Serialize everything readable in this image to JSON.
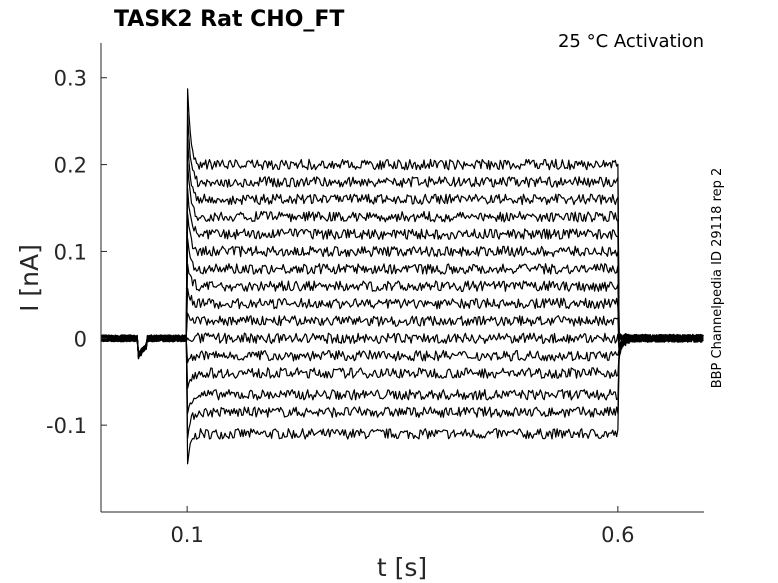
{
  "chart_data": {
    "type": "line",
    "title": "TASK2  Rat  CHO_FT",
    "annotation": "25 °C  Activation",
    "side_label": "BBP Channelpedia ID 29118 rep 2",
    "xlabel": "t [s]",
    "ylabel": "I [nA]",
    "xlim": [
      0.0,
      0.7
    ],
    "ylim": [
      -0.2,
      0.34
    ],
    "xticks": [
      0.1,
      0.6
    ],
    "xtick_labels": [
      "0.1",
      "0.6"
    ],
    "yticks": [
      -0.1,
      0,
      0.1,
      0.2,
      0.3
    ],
    "ytick_labels": [
      "-0.1",
      "0",
      "0.1",
      "0.2",
      "0.3"
    ],
    "grid": false,
    "line_color": "#000000",
    "step_start": 0.1,
    "step_end": 0.6,
    "baseline": 0.0,
    "pre_step_artifact_time": 0.045,
    "onset_peak": 0.3,
    "onset_trough": -0.15,
    "series": [
      {
        "level": -0.11
      },
      {
        "level": -0.085
      },
      {
        "level": -0.065
      },
      {
        "level": -0.04
      },
      {
        "level": -0.02
      },
      {
        "level": 0.0
      },
      {
        "level": 0.02
      },
      {
        "level": 0.04
      },
      {
        "level": 0.06
      },
      {
        "level": 0.08
      },
      {
        "level": 0.1
      },
      {
        "level": 0.12
      },
      {
        "level": 0.14
      },
      {
        "level": 0.16
      },
      {
        "level": 0.18
      },
      {
        "level": 0.2
      }
    ]
  }
}
